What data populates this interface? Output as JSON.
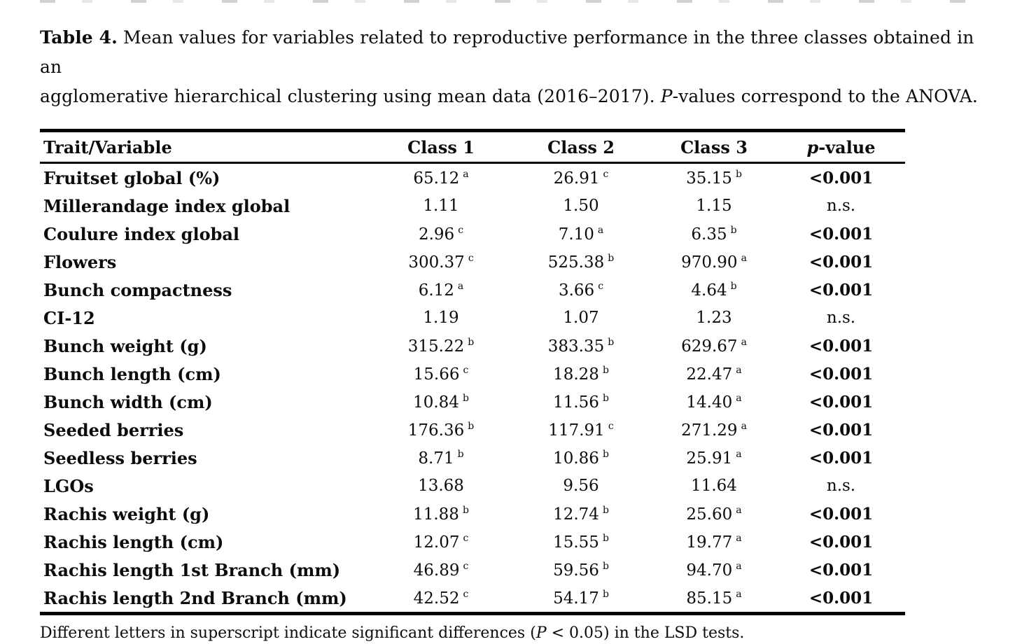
{
  "caption": {
    "parts": [
      {
        "text": "Table 4.",
        "style": "bold",
        "name": "table-number"
      },
      {
        "text": " Mean values for variables related to reproductive performance in the three classes obtained in an",
        "style": "normal",
        "name": "caption-text-line1"
      },
      {
        "style": "break",
        "name": "line-break"
      },
      {
        "text": "agglomerative hierarchical clustering using mean data (2016–2017). ",
        "style": "normal",
        "name": "caption-text-line2"
      },
      {
        "text": "P",
        "style": "italic",
        "name": "caption-italic-p"
      },
      {
        "text": "-values correspond to the ANOVA.",
        "style": "normal",
        "name": "caption-text-end"
      }
    ]
  },
  "table": {
    "headers": [
      {
        "id": "trait",
        "text": "Trait/Variable"
      },
      {
        "id": "class1",
        "text": "Class 1"
      },
      {
        "id": "class2",
        "text": "Class 2"
      },
      {
        "id": "class3",
        "text": "Class 3"
      },
      {
        "id": "pvalue",
        "italic": "p",
        "text": "-value"
      }
    ],
    "rows": [
      {
        "trait": "Fruitset global (%)",
        "values": [
          {
            "v": "65.12",
            "sup": "a"
          },
          {
            "v": "26.91",
            "sup": "c"
          },
          {
            "v": "35.15",
            "sup": "b"
          }
        ],
        "p": "<0.001",
        "significant": true
      },
      {
        "trait": "Millerandage index global",
        "values": [
          {
            "v": "1.11",
            "sup": ""
          },
          {
            "v": "1.50",
            "sup": ""
          },
          {
            "v": "1.15",
            "sup": ""
          }
        ],
        "p": "n.s.",
        "significant": false
      },
      {
        "trait": "Coulure index global",
        "values": [
          {
            "v": "2.96",
            "sup": "c"
          },
          {
            "v": "7.10",
            "sup": "a"
          },
          {
            "v": "6.35",
            "sup": "b"
          }
        ],
        "p": "<0.001",
        "significant": true
      },
      {
        "trait": "Flowers",
        "values": [
          {
            "v": "300.37",
            "sup": "c"
          },
          {
            "v": "525.38",
            "sup": "b"
          },
          {
            "v": "970.90",
            "sup": "a"
          }
        ],
        "p": "<0.001",
        "significant": true
      },
      {
        "trait": "Bunch compactness",
        "values": [
          {
            "v": "6.12",
            "sup": "a"
          },
          {
            "v": "3.66",
            "sup": "c"
          },
          {
            "v": "4.64",
            "sup": "b"
          }
        ],
        "p": "<0.001",
        "significant": true
      },
      {
        "trait": "CI-12",
        "values": [
          {
            "v": "1.19",
            "sup": ""
          },
          {
            "v": "1.07",
            "sup": ""
          },
          {
            "v": "1.23",
            "sup": ""
          }
        ],
        "p": "n.s.",
        "significant": false
      },
      {
        "trait": "Bunch weight (g)",
        "values": [
          {
            "v": "315.22",
            "sup": "b"
          },
          {
            "v": "383.35",
            "sup": "b"
          },
          {
            "v": "629.67",
            "sup": "a"
          }
        ],
        "p": "<0.001",
        "significant": true
      },
      {
        "trait": "Bunch length (cm)",
        "values": [
          {
            "v": "15.66",
            "sup": "c"
          },
          {
            "v": "18.28",
            "sup": "b"
          },
          {
            "v": "22.47",
            "sup": "a"
          }
        ],
        "p": "<0.001",
        "significant": true
      },
      {
        "trait": "Bunch width (cm)",
        "values": [
          {
            "v": "10.84",
            "sup": "b"
          },
          {
            "v": "11.56",
            "sup": "b"
          },
          {
            "v": "14.40",
            "sup": "a"
          }
        ],
        "p": "<0.001",
        "significant": true
      },
      {
        "trait": "Seeded berries",
        "values": [
          {
            "v": "176.36",
            "sup": "b"
          },
          {
            "v": "117.91",
            "sup": "c"
          },
          {
            "v": "271.29",
            "sup": "a"
          }
        ],
        "p": "<0.001",
        "significant": true
      },
      {
        "trait": "Seedless berries",
        "values": [
          {
            "v": "8.71",
            "sup": "b"
          },
          {
            "v": "10.86",
            "sup": "b"
          },
          {
            "v": "25.91",
            "sup": "a"
          }
        ],
        "p": "<0.001",
        "significant": true
      },
      {
        "trait": "LGOs",
        "values": [
          {
            "v": "13.68",
            "sup": ""
          },
          {
            "v": "9.56",
            "sup": ""
          },
          {
            "v": "11.64",
            "sup": ""
          }
        ],
        "p": "n.s.",
        "significant": false
      },
      {
        "trait": "Rachis weight (g)",
        "values": [
          {
            "v": "11.88",
            "sup": "b"
          },
          {
            "v": "12.74",
            "sup": "b"
          },
          {
            "v": "25.60",
            "sup": "a"
          }
        ],
        "p": "<0.001",
        "significant": true
      },
      {
        "trait": "Rachis length (cm)",
        "values": [
          {
            "v": "12.07",
            "sup": "c"
          },
          {
            "v": "15.55",
            "sup": "b"
          },
          {
            "v": "19.77",
            "sup": "a"
          }
        ],
        "p": "<0.001",
        "significant": true
      },
      {
        "trait": "Rachis length 1st Branch (mm)",
        "values": [
          {
            "v": "46.89",
            "sup": "c"
          },
          {
            "v": "59.56",
            "sup": "b"
          },
          {
            "v": "94.70",
            "sup": "a"
          }
        ],
        "p": "<0.001",
        "significant": true
      },
      {
        "trait": "Rachis length 2nd Branch (mm)",
        "values": [
          {
            "v": "42.52",
            "sup": "c"
          },
          {
            "v": "54.17",
            "sup": "b"
          },
          {
            "v": "85.15",
            "sup": "a"
          }
        ],
        "p": "<0.001",
        "significant": true
      }
    ]
  },
  "footnote": {
    "parts": [
      {
        "text": "Different letters in superscript indicate significant differences (",
        "style": "normal",
        "name": "footnote-text"
      },
      {
        "text": "P",
        "style": "italic",
        "name": "footnote-italic-p"
      },
      {
        "text": " < 0.05) in the LSD tests.",
        "style": "normal",
        "name": "footnote-text-end"
      }
    ]
  },
  "colors": {
    "text": "#0c0c0c",
    "rule": "#000000",
    "background": "#ffffff"
  }
}
